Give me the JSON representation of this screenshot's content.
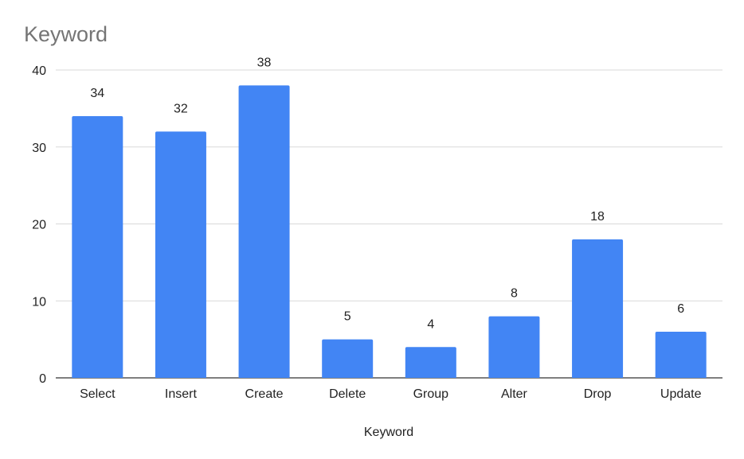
{
  "chart_data": {
    "type": "bar",
    "title": "Keyword",
    "xlabel": "Keyword",
    "ylabel": "",
    "categories": [
      "Select",
      "Insert",
      "Create",
      "Delete",
      "Group",
      "Alter",
      "Drop",
      "Update"
    ],
    "values": [
      34,
      32,
      38,
      5,
      4,
      8,
      18,
      6
    ],
    "ylim": [
      0,
      40
    ],
    "yticks": [
      0,
      10,
      20,
      30,
      40
    ],
    "grid": true,
    "legend": "none",
    "data_labels": true,
    "bar_color": "#4285f4"
  }
}
